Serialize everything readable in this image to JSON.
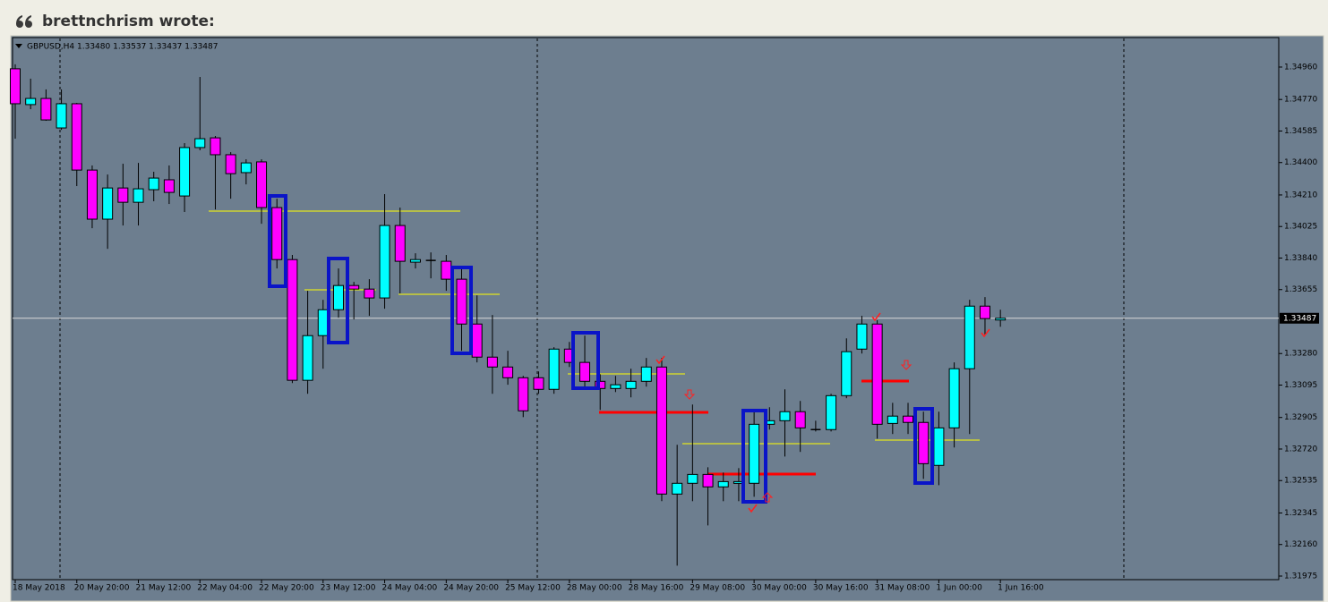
{
  "header": {
    "author_line": "brettnchrism wrote:"
  },
  "chart_data": {
    "type": "candlestick",
    "instrument_label": "GBPUSD,H4  1.33480 1.33537 1.33437 1.33487",
    "categories": [
      "18 May 2018",
      null,
      null,
      null,
      "20 May 20:00",
      null,
      null,
      null,
      "21 May 12:00",
      null,
      null,
      null,
      "22 May 04:00",
      null,
      null,
      null,
      "22 May 20:00",
      null,
      null,
      null,
      "23 May 12:00",
      null,
      null,
      null,
      "24 May 04:00",
      null,
      null,
      null,
      "24 May 20:00",
      null,
      null,
      null,
      "25 May 12:00",
      null,
      null,
      null,
      "28 May 00:00",
      null,
      null,
      null,
      "28 May 16:00",
      null,
      null,
      null,
      "29 May 08:00",
      null,
      null,
      null,
      "30 May 00:00",
      null,
      null,
      null,
      "30 May 16:00",
      null,
      null,
      null,
      "31 May 08:00",
      null,
      null,
      null,
      "1 Jun 00:00",
      null,
      null,
      null,
      "1 Jun 16:00"
    ],
    "open": [
      1.3495,
      1.3474,
      1.34776,
      1.34603,
      1.34745,
      1.34356,
      1.34068,
      1.34251,
      1.34167,
      1.34241,
      1.34299,
      1.34204,
      1.34488,
      1.34545,
      1.34446,
      1.34341,
      1.34404,
      1.34136,
      1.33831,
      1.33123,
      1.33385,
      1.33537,
      1.33679,
      1.33658,
      1.33606,
      1.34031,
      1.33816,
      1.33826,
      1.33821,
      1.33716,
      1.33453,
      1.33259,
      1.33201,
      1.33138,
      1.33138,
      1.3307,
      1.33306,
      1.33228,
      1.33117,
      1.33075,
      1.33075,
      1.33117,
      1.33201,
      1.32456,
      1.32519,
      1.32571,
      1.32498,
      1.32519,
      1.32519,
      1.32865,
      1.32886,
      1.32939,
      1.32834,
      1.32834,
      1.33033,
      1.33306,
      1.33453,
      1.3287,
      1.32913,
      1.32876,
      1.32624,
      1.32844,
      1.33191,
      1.33558,
      1.3348
    ],
    "high": [
      1.34976,
      1.34892,
      1.34829,
      1.34829,
      1.3475,
      1.34383,
      1.3433,
      1.34393,
      1.34398,
      1.34346,
      1.34383,
      1.34514,
      1.34902,
      1.34556,
      1.34461,
      1.34419,
      1.34419,
      1.34188,
      1.33858,
      1.33648,
      1.33595,
      1.33779,
      1.337,
      1.33716,
      1.34215,
      1.34136,
      1.33868,
      1.33873,
      1.33858,
      1.33779,
      1.33621,
      1.33506,
      1.33296,
      1.33149,
      1.33175,
      1.33317,
      1.33348,
      1.33385,
      1.33159,
      1.33149,
      1.33191,
      1.33254,
      1.33254,
      1.32745,
      1.32981,
      1.32613,
      1.32582,
      1.32608,
      1.32939,
      1.32965,
      1.3307,
      1.33002,
      1.32886,
      1.33044,
      1.33369,
      1.33501,
      1.33475,
      1.32991,
      1.32991,
      1.32939,
      1.32939,
      1.33228,
      1.33595,
      1.33611,
      1.33537
    ],
    "low": [
      1.3454,
      1.34713,
      1.34645,
      1.34592,
      1.34262,
      1.34015,
      1.33894,
      1.34031,
      1.34031,
      1.34173,
      1.34157,
      1.3411,
      1.34472,
      1.34125,
      1.34188,
      1.34272,
      1.34041,
      1.33779,
      1.33107,
      1.33044,
      1.33191,
      1.3349,
      1.3348,
      1.33501,
      1.33543,
      1.33632,
      1.33779,
      1.33721,
      1.33648,
      1.33296,
      1.33228,
      1.33044,
      1.33097,
      1.32907,
      1.33044,
      1.33044,
      1.33201,
      1.3307,
      1.32949,
      1.33054,
      1.33023,
      1.33086,
      1.32414,
      1.32036,
      1.32414,
      1.32272,
      1.32414,
      1.32414,
      1.3244,
      1.32834,
      1.32676,
      1.32703,
      1.32823,
      1.32823,
      1.33018,
      1.3328,
      1.32781,
      1.32808,
      1.32808,
      1.32545,
      1.32508,
      1.32729,
      1.32808,
      1.33385,
      1.33437
    ],
    "close": [
      1.34745,
      1.34776,
      1.3465,
      1.34745,
      1.34356,
      1.34068,
      1.34251,
      1.34167,
      1.34246,
      1.34309,
      1.34225,
      1.34488,
      1.3454,
      1.34446,
      1.34335,
      1.34398,
      1.34136,
      1.33831,
      1.33123,
      1.33385,
      1.33537,
      1.33679,
      1.33658,
      1.33606,
      1.34031,
      1.33821,
      1.33831,
      1.33826,
      1.33716,
      1.33453,
      1.33259,
      1.33201,
      1.33138,
      1.32944,
      1.3307,
      1.33306,
      1.33228,
      1.33117,
      1.33075,
      1.33097,
      1.33117,
      1.33201,
      1.32456,
      1.32519,
      1.32571,
      1.32498,
      1.32529,
      1.32529,
      1.32865,
      1.32886,
      1.32939,
      1.32844,
      1.32834,
      1.33033,
      1.33291,
      1.33453,
      1.32865,
      1.32913,
      1.32876,
      1.32634,
      1.32844,
      1.33191,
      1.33558,
      1.33485,
      1.33487
    ],
    "up_color": "#00ffff",
    "down_color": "#ff00ff",
    "ylim": [
      1.31954,
      1.35133
    ],
    "yticks": [
      {
        "value": 1.3496,
        "label": "1.34960"
      },
      {
        "value": 1.3477,
        "label": "1.34770"
      },
      1.34585,
      {
        "value": 1.344,
        "label": "1.34400"
      },
      {
        "value": 1.3421,
        "label": "1.34210"
      },
      1.34025,
      {
        "value": 1.3384,
        "label": "1.33840"
      },
      1.33655,
      {
        "value": 1.3328,
        "label": "1.33280"
      },
      1.33095,
      1.32905,
      {
        "value": 1.3272,
        "label": "1.32720"
      },
      1.32535,
      1.32345,
      {
        "value": 1.3216,
        "label": "1.32160"
      },
      1.31975
    ],
    "current_price": {
      "value": 1.33487,
      "label": "1.33487"
    }
  }
}
